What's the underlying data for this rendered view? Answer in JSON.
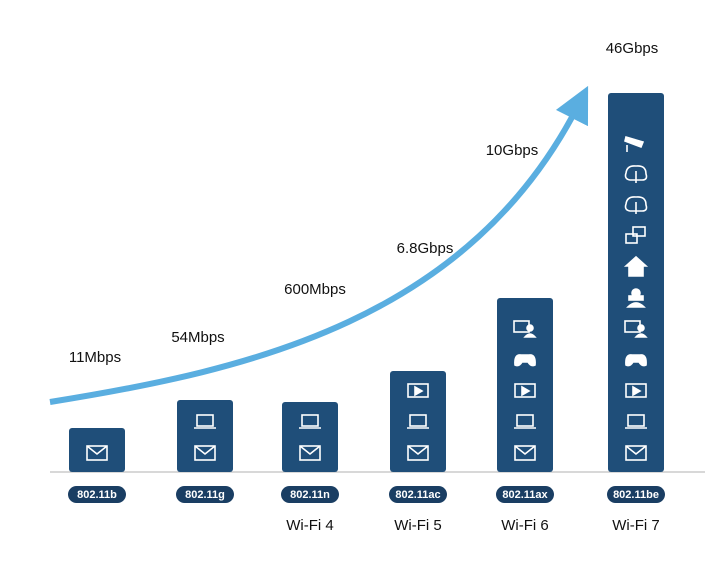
{
  "generations": [
    {
      "standard": "802.11b",
      "speed": "11Mbps"
    },
    {
      "standard": "802.11g",
      "speed": "54Mbps"
    },
    {
      "standard": "802.11n",
      "name": "Wi-Fi 4",
      "speed": "600Mbps"
    },
    {
      "standard": "802.11ac",
      "name": "Wi-Fi 5",
      "speed": "6.8Gbps"
    },
    {
      "standard": "802.11ax",
      "name": "Wi-Fi 6",
      "speed": "10Gbps"
    },
    {
      "standard": "802.11be",
      "name": "Wi-Fi 7",
      "speed": "46Gbps"
    }
  ]
}
